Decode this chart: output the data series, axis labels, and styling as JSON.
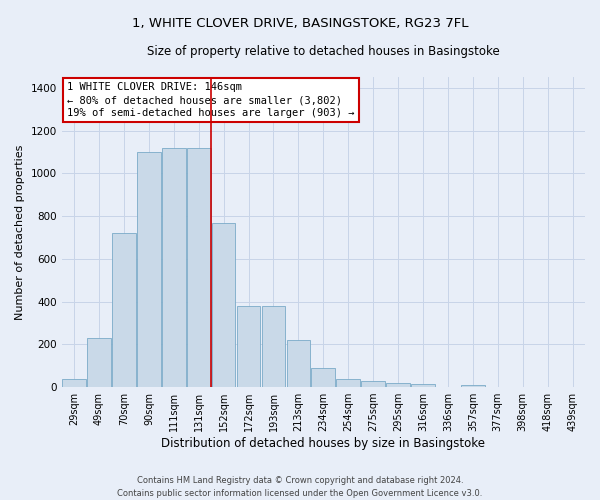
{
  "title": "1, WHITE CLOVER DRIVE, BASINGSTOKE, RG23 7FL",
  "subtitle": "Size of property relative to detached houses in Basingstoke",
  "xlabel": "Distribution of detached houses by size in Basingstoke",
  "ylabel": "Number of detached properties",
  "footer_line1": "Contains HM Land Registry data © Crown copyright and database right 2024.",
  "footer_line2": "Contains public sector information licensed under the Open Government Licence v3.0.",
  "bar_labels": [
    "29sqm",
    "49sqm",
    "70sqm",
    "90sqm",
    "111sqm",
    "131sqm",
    "152sqm",
    "172sqm",
    "193sqm",
    "213sqm",
    "234sqm",
    "254sqm",
    "275sqm",
    "295sqm",
    "316sqm",
    "336sqm",
    "357sqm",
    "377sqm",
    "398sqm",
    "418sqm",
    "439sqm"
  ],
  "bar_values": [
    40,
    230,
    720,
    1100,
    1120,
    1120,
    770,
    380,
    380,
    220,
    90,
    40,
    30,
    20,
    15,
    0,
    10,
    0,
    0,
    0,
    0
  ],
  "bar_color": "#c9d9e8",
  "bar_edge_color": "#7aaac8",
  "grid_color": "#c8d4e8",
  "background_color": "#e8eef8",
  "vline_color": "#cc0000",
  "vline_x": 5.5,
  "annotation_text": "1 WHITE CLOVER DRIVE: 146sqm\n← 80% of detached houses are smaller (3,802)\n19% of semi-detached houses are larger (903) →",
  "annotation_box_facecolor": "#ffffff",
  "annotation_box_edgecolor": "#cc0000",
  "ylim": [
    0,
    1450
  ],
  "yticks": [
    0,
    200,
    400,
    600,
    800,
    1000,
    1200,
    1400
  ],
  "title_fontsize": 9.5,
  "subtitle_fontsize": 8.5,
  "ylabel_fontsize": 8,
  "xlabel_fontsize": 8.5,
  "tick_fontsize": 7,
  "annotation_fontsize": 7.5,
  "footer_fontsize": 6
}
